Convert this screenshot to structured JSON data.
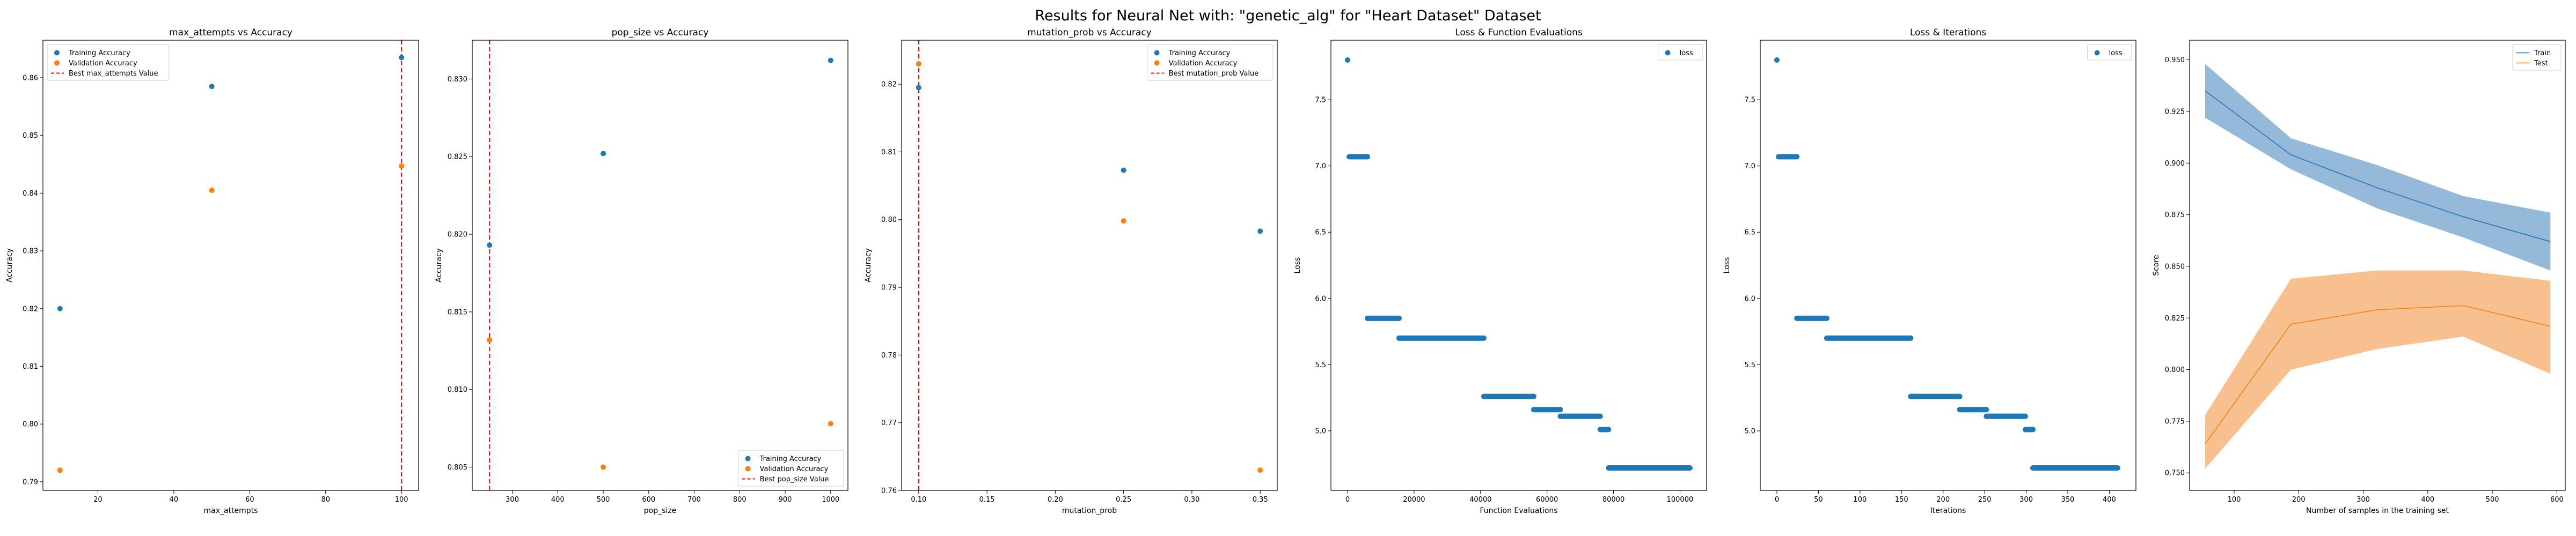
{
  "figure": {
    "title": "Results for Neural Net with: \"genetic_alg\" for \"Heart Dataset\" Dataset"
  },
  "colors": {
    "train": "#1f77b4",
    "validation": "#ff7f0e",
    "best": "#ff0000",
    "train_band": "#94b9d9",
    "test_band": "#f8c08f"
  },
  "chart_data": [
    {
      "type": "scatter",
      "title": "max_attempts vs Accuracy",
      "xlabel": "max_attempts",
      "ylabel": "Accuracy",
      "xlim": [
        5.5,
        104.5
      ],
      "ylim": [
        0.7885,
        0.8665
      ],
      "xticks": [
        20,
        40,
        60,
        80,
        100
      ],
      "yticks": [
        0.79,
        0.8,
        0.81,
        0.82,
        0.83,
        0.84,
        0.85,
        0.86
      ],
      "ytick_decimals": 2,
      "legend_pos": "top-left",
      "series": [
        {
          "name": "Training Accuracy",
          "color": "#1f77b4",
          "x": [
            10,
            50,
            100
          ],
          "y": [
            0.82,
            0.8585,
            0.8635
          ]
        },
        {
          "name": "Validation Accuracy",
          "color": "#ff7f0e",
          "x": [
            10,
            50,
            100
          ],
          "y": [
            0.792,
            0.8405,
            0.8447
          ]
        }
      ],
      "best": {
        "name": "Best max_attempts Value",
        "x": 100
      }
    },
    {
      "type": "scatter",
      "title": "pop_size vs Accuracy",
      "xlabel": "pop_size",
      "ylabel": "Accuracy",
      "xlim": [
        212,
        1038
      ],
      "ylim": [
        0.8035,
        0.8325
      ],
      "xticks": [
        300,
        400,
        500,
        600,
        700,
        800,
        900,
        1000
      ],
      "yticks": [
        0.805,
        0.81,
        0.815,
        0.82,
        0.825,
        0.83
      ],
      "ytick_decimals": 3,
      "legend_pos": "bottom-right",
      "series": [
        {
          "name": "Training Accuracy",
          "color": "#1f77b4",
          "x": [
            250,
            500,
            1000
          ],
          "y": [
            0.8193,
            0.8252,
            0.8312
          ]
        },
        {
          "name": "Validation Accuracy",
          "color": "#ff7f0e",
          "x": [
            250,
            500,
            1000
          ],
          "y": [
            0.8132,
            0.805,
            0.8078
          ]
        }
      ],
      "best": {
        "name": "Best pop_size Value",
        "x": 250
      }
    },
    {
      "type": "scatter",
      "title": "mutation_prob vs Accuracy",
      "xlabel": "mutation_prob",
      "ylabel": "Accuracy",
      "xlim": [
        0.0875,
        0.3625
      ],
      "ylim": [
        0.76,
        0.8265
      ],
      "xticks": [
        0.1,
        0.15,
        0.2,
        0.25,
        0.3,
        0.35
      ],
      "xtick_decimals": 2,
      "yticks": [
        0.76,
        0.77,
        0.78,
        0.79,
        0.8,
        0.81,
        0.82
      ],
      "ytick_decimals": 2,
      "legend_pos": "top-right",
      "series": [
        {
          "name": "Training Accuracy",
          "color": "#1f77b4",
          "x": [
            0.1,
            0.25,
            0.35
          ],
          "y": [
            0.8195,
            0.8073,
            0.7983
          ]
        },
        {
          "name": "Validation Accuracy",
          "color": "#ff7f0e",
          "x": [
            0.1,
            0.25,
            0.35
          ],
          "y": [
            0.823,
            0.7998,
            0.763
          ]
        }
      ],
      "best": {
        "name": "Best mutation_prob Value",
        "x": 0.1
      }
    },
    {
      "type": "scatter",
      "title": "Loss & Function Evaluations",
      "xlabel": "Function Evaluations",
      "ylabel": "Loss",
      "xlim": [
        -5000,
        108000
      ],
      "ylim": [
        4.55,
        7.95
      ],
      "xticks": [
        0,
        20000,
        40000,
        60000,
        80000,
        100000
      ],
      "yticks": [
        5.0,
        5.5,
        6.0,
        6.5,
        7.0,
        7.5
      ],
      "ytick_decimals": 1,
      "legend_pos": "top-right",
      "series": [
        {
          "name": "loss",
          "color": "#1f77b4",
          "points": [
            [
              0,
              7.8
            ]
          ],
          "segments": [
            [
              500,
              6000,
              7.07
            ],
            [
              6000,
              15500,
              5.85
            ],
            [
              15500,
              41000,
              5.7
            ],
            [
              41000,
              56000,
              5.26
            ],
            [
              56000,
              64000,
              5.16
            ],
            [
              64000,
              76000,
              5.11
            ],
            [
              76000,
              78500,
              5.01
            ],
            [
              78500,
              103000,
              4.72
            ]
          ]
        }
      ]
    },
    {
      "type": "scatter",
      "title": "Loss & Iterations",
      "xlabel": "Iterations",
      "ylabel": "Loss",
      "xlim": [
        -20,
        432
      ],
      "ylim": [
        4.55,
        7.95
      ],
      "xticks": [
        0,
        50,
        100,
        150,
        200,
        250,
        300,
        350,
        400
      ],
      "yticks": [
        5.0,
        5.5,
        6.0,
        6.5,
        7.0,
        7.5
      ],
      "ytick_decimals": 1,
      "legend_pos": "top-right",
      "series": [
        {
          "name": "loss",
          "color": "#1f77b4",
          "points": [
            [
              0,
              7.8
            ]
          ],
          "segments": [
            [
              2,
              24,
              7.07
            ],
            [
              24,
              60,
              5.85
            ],
            [
              60,
              161,
              5.7
            ],
            [
              161,
              220,
              5.26
            ],
            [
              220,
              252,
              5.16
            ],
            [
              252,
              299,
              5.11
            ],
            [
              299,
              308,
              5.01
            ],
            [
              308,
              410,
              4.72
            ]
          ]
        }
      ]
    },
    {
      "type": "line",
      "title": "",
      "xlabel": "Number of samples in the training set",
      "ylabel": "Score",
      "xlim": [
        31,
        613
      ],
      "ylim": [
        0.7415,
        0.9595
      ],
      "xticks": [
        100,
        200,
        300,
        400,
        500,
        600
      ],
      "yticks": [
        0.75,
        0.775,
        0.8,
        0.825,
        0.85,
        0.875,
        0.9,
        0.925,
        0.95
      ],
      "ytick_decimals": 3,
      "legend_pos": "top-right",
      "series": [
        {
          "name": "Train",
          "color": "#1f77b4",
          "band": "#94b9d9",
          "x": [
            55,
            188,
            322,
            455,
            590
          ],
          "y": [
            0.935,
            0.904,
            0.888,
            0.874,
            0.862
          ],
          "lower": [
            0.922,
            0.897,
            0.878,
            0.864,
            0.848
          ],
          "upper": [
            0.948,
            0.912,
            0.899,
            0.884,
            0.876
          ]
        },
        {
          "name": "Test",
          "color": "#ff7f0e",
          "band": "#f8c08f",
          "x": [
            55,
            188,
            322,
            455,
            590
          ],
          "y": [
            0.764,
            0.822,
            0.829,
            0.831,
            0.821
          ],
          "lower": [
            0.752,
            0.8,
            0.81,
            0.816,
            0.798
          ],
          "upper": [
            0.778,
            0.844,
            0.848,
            0.848,
            0.843
          ]
        }
      ]
    }
  ]
}
